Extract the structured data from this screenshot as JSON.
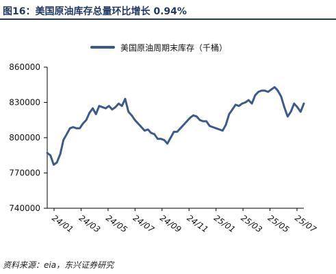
{
  "title": "图16：美国原油库存总量环比增长 0.94%",
  "source": "资料来源：eia，东兴证券研究",
  "chart_data": {
    "type": "line",
    "series": [
      {
        "name": "美国原油周期末库存（千桶）",
        "color": "#3a5a8c",
        "values": [
          787000,
          785000,
          777000,
          779000,
          786000,
          798000,
          803000,
          808000,
          809000,
          808000,
          808000,
          812000,
          815000,
          821000,
          825000,
          820000,
          827000,
          826000,
          825000,
          827000,
          824000,
          826000,
          829000,
          827000,
          833000,
          822000,
          819000,
          815000,
          812000,
          809000,
          806000,
          807000,
          804000,
          803000,
          799000,
          799000,
          798000,
          795000,
          800000,
          805000,
          805000,
          808000,
          811000,
          814000,
          817000,
          819000,
          818000,
          815000,
          814000,
          814000,
          810000,
          809000,
          808000,
          807000,
          806000,
          811000,
          820000,
          824000,
          828000,
          827000,
          829000,
          830000,
          832000,
          829000,
          836000,
          839000,
          840000,
          840000,
          839000,
          841000,
          843000,
          840000,
          835000,
          826000,
          818000,
          822000,
          829000,
          826000,
          822000,
          829000
        ]
      }
    ],
    "x_ticks": [
      "24/01",
      "24/03",
      "24/05",
      "24/07",
      "24/09",
      "24/11",
      "25/01",
      "25/03",
      "25/05",
      "25/07"
    ],
    "y_ticks": [
      "860000",
      "830000",
      "800000",
      "770000",
      "740000"
    ],
    "ylim": [
      740000,
      860000
    ],
    "legend_position": "top",
    "grid": false
  }
}
